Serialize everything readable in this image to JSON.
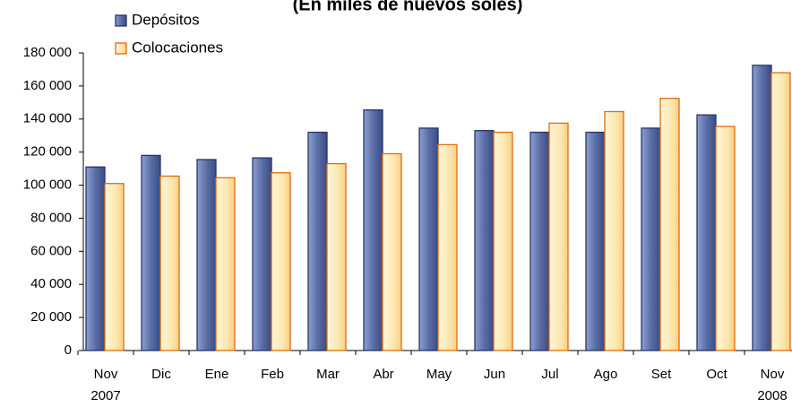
{
  "chart_data": {
    "type": "bar",
    "title": "(En miles de nuevos soles)",
    "categories": [
      "Nov",
      "Dic",
      "Ene",
      "Feb",
      "Mar",
      "Abr",
      "May",
      "Jun",
      "Jul",
      "Ago",
      "Set",
      "Oct",
      "Nov"
    ],
    "year_labels": [
      "2007",
      null,
      null,
      null,
      null,
      null,
      null,
      null,
      null,
      null,
      null,
      null,
      "2008"
    ],
    "series": [
      {
        "name": "Depósitos",
        "color": "#5a6ea6",
        "values": [
          111000,
          118000,
          115500,
          116500,
          132000,
          145500,
          134500,
          133000,
          132000,
          132000,
          134500,
          142500,
          172500
        ]
      },
      {
        "name": "Colocaciones",
        "color": "#fde7af",
        "values": [
          101000,
          105500,
          104500,
          107500,
          113000,
          119000,
          124500,
          132000,
          137500,
          144500,
          152500,
          135500,
          168000
        ]
      }
    ],
    "ylim": [
      0,
      180000
    ],
    "yticks": [
      {
        "value": 0,
        "label": "0"
      },
      {
        "value": 20000,
        "label": "20 000"
      },
      {
        "value": 40000,
        "label": "40 000"
      },
      {
        "value": 60000,
        "label": "60 000"
      },
      {
        "value": 80000,
        "label": "80 000"
      },
      {
        "value": 100000,
        "label": "100 000"
      },
      {
        "value": 120000,
        "label": "120 000"
      },
      {
        "value": 140000,
        "label": "140 000"
      },
      {
        "value": 160000,
        "label": "160 000"
      },
      {
        "value": 180000,
        "label": "180 000"
      }
    ],
    "grid": false,
    "legend": "top-left"
  }
}
